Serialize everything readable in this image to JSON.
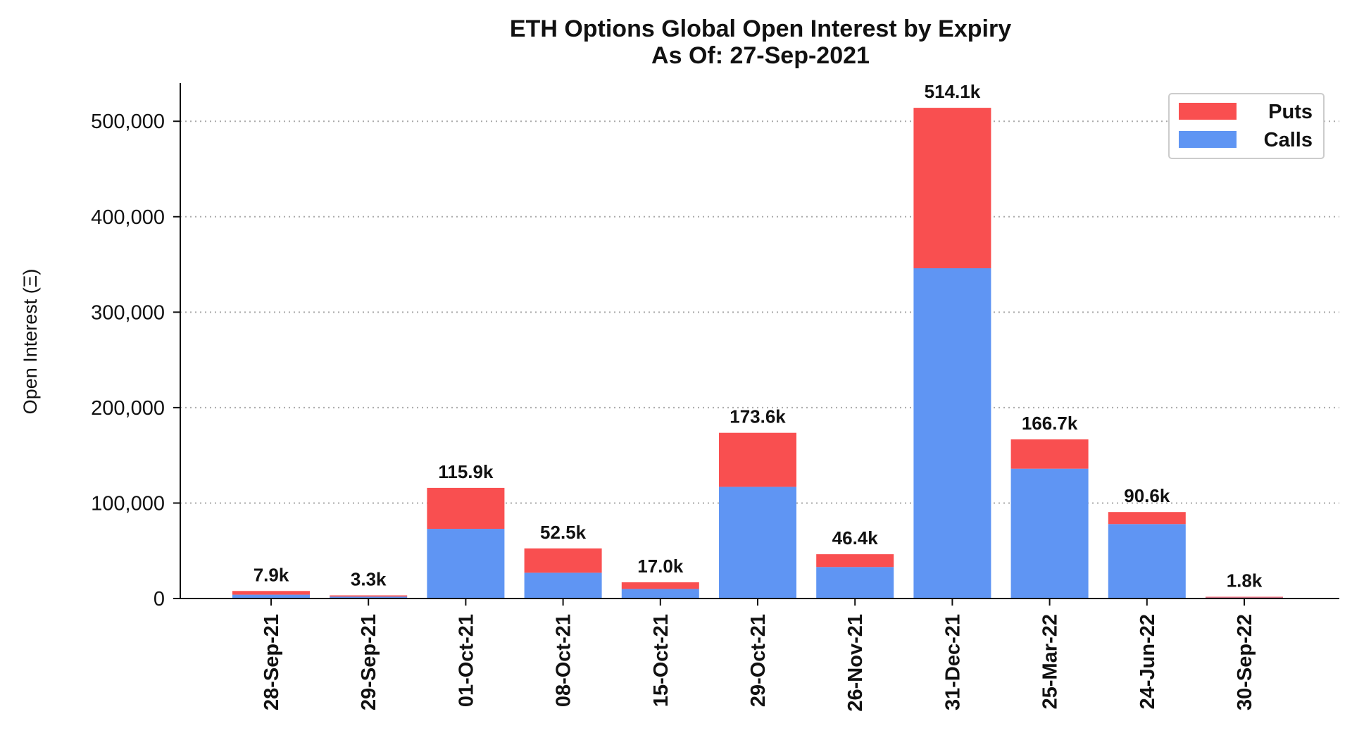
{
  "chart_data": {
    "type": "bar",
    "stacked": true,
    "title": "ETH Options Global Open Interest by Expiry",
    "subtitle": "As Of: 27-Sep-2021",
    "xlabel": "",
    "ylabel": "Open Interest (Ξ)",
    "ylim": [
      0,
      540000
    ],
    "yticks": [
      0,
      100000,
      200000,
      300000,
      400000,
      500000
    ],
    "ytick_labels": [
      "0",
      "100,000",
      "200,000",
      "300,000",
      "400,000",
      "500,000"
    ],
    "grid": true,
    "legend_position": "top-right",
    "categories": [
      "28-Sep-21",
      "29-Sep-21",
      "01-Oct-21",
      "08-Oct-21",
      "15-Oct-21",
      "29-Oct-21",
      "26-Nov-21",
      "31-Dec-21",
      "25-Mar-22",
      "24-Jun-22",
      "30-Sep-22"
    ],
    "series": [
      {
        "name": "Calls",
        "color": "#5f95f3",
        "values": [
          4000,
          2000,
          73000,
          27000,
          10000,
          117000,
          33000,
          346000,
          136000,
          78000,
          1000
        ]
      },
      {
        "name": "Puts",
        "color": "#f94f50",
        "values": [
          3900,
          1300,
          42900,
          25500,
          7000,
          56600,
          13400,
          168100,
          30700,
          12600,
          800
        ]
      }
    ],
    "totals_labels": [
      "7.9k",
      "3.3k",
      "115.9k",
      "52.5k",
      "17.0k",
      "173.6k",
      "46.4k",
      "514.1k",
      "166.7k",
      "90.6k",
      "1.8k"
    ]
  }
}
